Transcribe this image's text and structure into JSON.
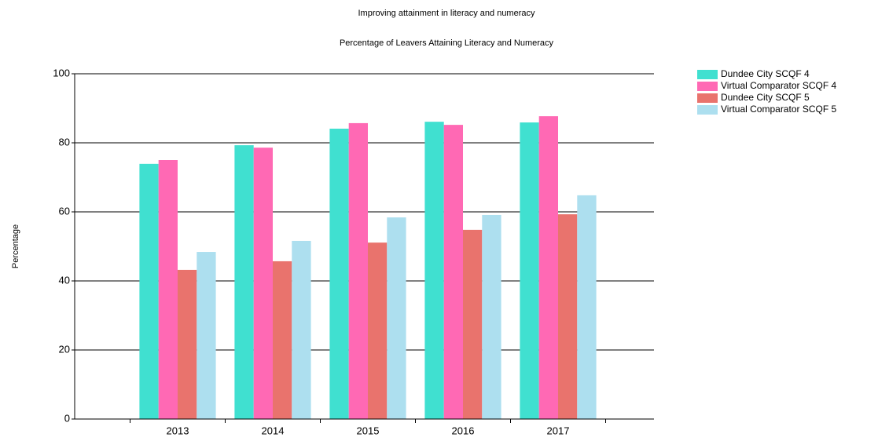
{
  "chart_data": {
    "type": "bar",
    "title": "Improving attainment in literacy and numeracy",
    "subtitle": "Percentage of Leavers Attaining Literacy and Numeracy",
    "y_label": "Percentage",
    "categories": [
      "2013",
      "2014",
      "2015",
      "2016",
      "2017"
    ],
    "series": [
      {
        "name": "Dundee City SCQF 4",
        "color": "#40e0d0",
        "values": [
          73.9,
          79.3,
          84.1,
          86.1,
          85.9
        ]
      },
      {
        "name": "Virtual Comparator SCQF 4",
        "color": "#ff69b4",
        "values": [
          75,
          78.6,
          85.7,
          85.2,
          87.7
        ]
      },
      {
        "name": "Dundee City SCQF 5",
        "color": "#e9736d",
        "values": [
          43.2,
          45.7,
          51.1,
          54.8,
          59.3
        ]
      },
      {
        "name": "Virtual Comparator SCQF 5",
        "color": "#addfef",
        "values": [
          48.4,
          51.6,
          58.4,
          59.1,
          64.8
        ]
      }
    ],
    "ylim": [
      0,
      100
    ],
    "yticks": [
      0,
      20,
      40,
      60,
      80,
      100
    ],
    "grid": true,
    "legend": "right"
  }
}
